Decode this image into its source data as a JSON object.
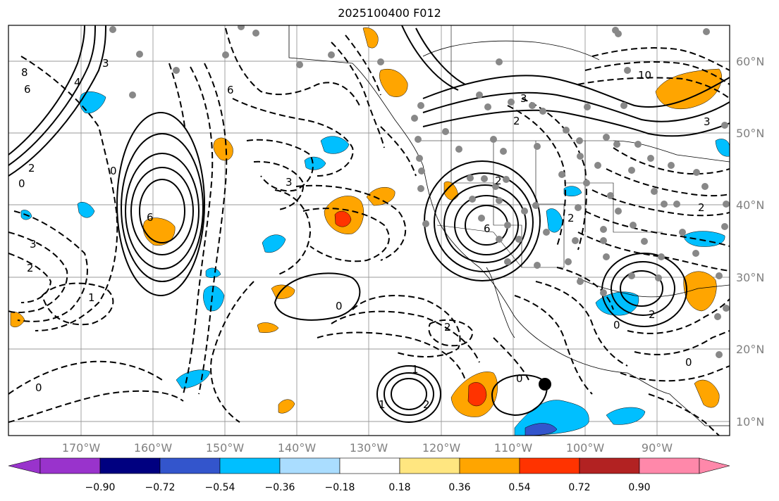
{
  "title": "2025100400 F012",
  "map": {
    "lat_labels": [
      "60°N",
      "50°N",
      "40°N",
      "30°N",
      "20°N",
      "10°N"
    ],
    "lon_labels": [
      "170°W",
      "160°W",
      "150°W",
      "140°W",
      "130°W",
      "120°W",
      "110°W",
      "100°W",
      "90°W"
    ],
    "contour_labels": [
      "8",
      "6",
      "4",
      "2",
      "0",
      "3",
      "6",
      "0",
      "3",
      "2",
      "1",
      "0",
      "6",
      "3",
      "2",
      "1",
      "0",
      "2",
      "0",
      "1",
      "2",
      "0",
      "2",
      "6",
      "3",
      "2",
      "10",
      "3",
      "2",
      "0",
      "2"
    ],
    "marker_color": "#000000",
    "dot_color": "#888888"
  },
  "colorbar": {
    "ticks": [
      "−0.90",
      "−0.72",
      "−0.54",
      "−0.36",
      "−0.18",
      "0.18",
      "0.36",
      "0.54",
      "0.72",
      "0.90"
    ],
    "colors": [
      "#9933cc",
      "#000080",
      "#3355cc",
      "#00bfff",
      "#aaddff",
      "#ffffff",
      "#ffe680",
      "#ffa500",
      "#ff3300",
      "#b22222",
      "#ff88aa"
    ]
  }
}
